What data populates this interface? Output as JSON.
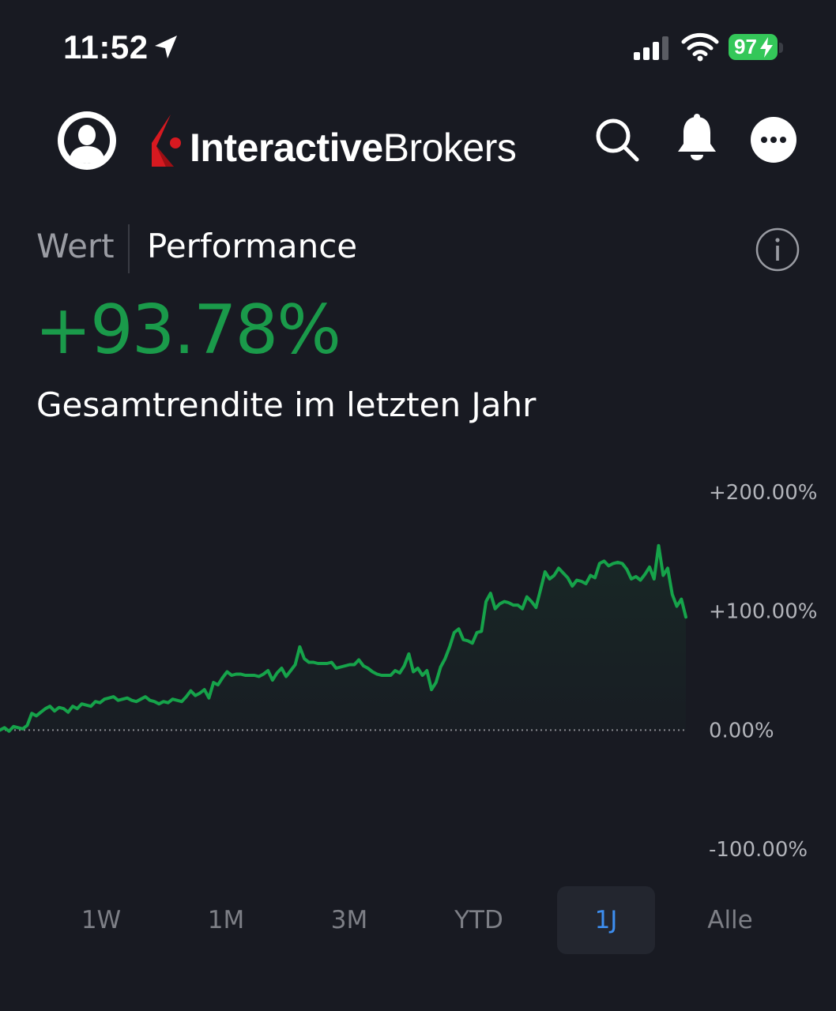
{
  "status_bar": {
    "time": "11:52",
    "battery_level": "97",
    "icons": [
      "location-arrow-icon",
      "cellular-signal-icon",
      "wifi-icon",
      "battery-charging-icon"
    ]
  },
  "header": {
    "brand_bold": "Interactive",
    "brand_regular": "Brokers",
    "icons": [
      "user-avatar-icon",
      "search-icon",
      "bell-icon",
      "more-icon"
    ]
  },
  "tabs": {
    "value_label": "Wert",
    "performance_label": "Performance",
    "active": "Performance"
  },
  "summary": {
    "return_value": "+93.78%",
    "caption": "Gesamtrendite im letzten Jahr"
  },
  "colors": {
    "background": "#181a22",
    "positive": "#1a9a4a",
    "line": "#16a34a",
    "accent": "#3d8ef0",
    "brand_red": "#d71920"
  },
  "chart_data": {
    "type": "area",
    "y_ticks": [
      "+200.00%",
      "+100.00%",
      "0.00%",
      "-100.00%"
    ],
    "ylim": [
      -100,
      200
    ],
    "baseline": 0,
    "series": [
      {
        "values": [
          0,
          2,
          -1,
          3,
          2,
          1,
          4,
          14,
          12,
          15,
          18,
          20,
          16,
          19,
          18,
          15,
          20,
          18,
          22,
          21,
          20,
          24,
          23,
          26,
          27,
          28,
          25,
          26,
          27,
          25,
          24,
          26,
          28,
          25,
          24,
          22,
          24,
          23,
          26,
          25,
          24,
          28,
          33,
          29,
          31,
          34,
          27,
          40,
          38,
          44,
          49,
          46,
          47,
          47,
          46,
          46,
          46,
          45,
          47,
          50,
          42,
          48,
          52,
          45,
          50,
          55,
          70,
          60,
          57,
          57,
          56,
          56,
          56,
          57,
          52,
          53,
          54,
          55,
          55,
          59,
          54,
          52,
          49,
          47,
          46,
          46,
          46,
          50,
          48,
          54,
          64,
          49,
          52,
          46,
          50,
          34,
          40,
          53,
          60,
          70,
          82,
          85,
          76,
          75,
          73,
          82,
          83,
          108,
          115,
          102,
          106,
          108,
          107,
          105,
          105,
          102,
          112,
          108,
          103,
          118,
          133,
          127,
          130,
          136,
          132,
          128,
          121,
          126,
          125,
          123,
          130,
          128,
          140,
          142,
          138,
          140,
          141,
          140,
          135,
          127,
          129,
          126,
          131,
          137,
          127,
          155,
          130,
          136,
          114,
          104,
          110,
          95
        ]
      }
    ],
    "grid": false,
    "legend": "none"
  },
  "time_ranges": [
    {
      "label": "1W",
      "active": false
    },
    {
      "label": "1M",
      "active": false
    },
    {
      "label": "3M",
      "active": false
    },
    {
      "label": "YTD",
      "active": false
    },
    {
      "label": "1J",
      "active": true
    },
    {
      "label": "Alle",
      "active": false
    }
  ]
}
